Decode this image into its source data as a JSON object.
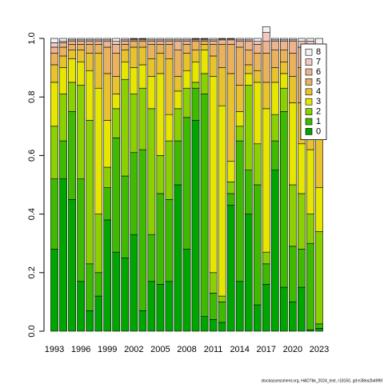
{
  "chart_data": {
    "type": "stacked_bar",
    "categories": [
      "1993",
      null,
      null,
      "1996",
      null,
      null,
      "1999",
      null,
      null,
      "2002",
      null,
      null,
      "2005",
      null,
      null,
      "2008",
      null,
      null,
      "2011",
      null,
      null,
      "2014",
      null,
      null,
      "2017",
      null,
      null,
      "2020",
      null,
      null,
      "2023"
    ],
    "series": [
      {
        "name": "0",
        "color": "#00A600",
        "values": [
          0.28,
          0.52,
          0.45,
          0.17,
          0.07,
          0.12,
          0.38,
          0.27,
          0.25,
          0.33,
          0.07,
          0.17,
          0.16,
          0.17,
          0.5,
          0.28,
          0.72,
          0.05,
          0.04,
          0.03,
          0.43,
          0.17,
          0.4,
          0.09,
          0.16,
          0.55,
          0.15,
          0.1,
          0.15,
          0.005,
          0.01
        ]
      },
      {
        "name": "1",
        "color": "#3EBB00",
        "values": [
          0.24,
          0.13,
          0.3,
          0.35,
          0.16,
          0.08,
          0.11,
          0.39,
          0.28,
          0.28,
          0.55,
          0.16,
          0.31,
          0.28,
          0.15,
          0.45,
          0.11,
          0.76,
          0.09,
          0.07,
          0.04,
          0.48,
          0.15,
          0.41,
          0.07,
          0.1,
          0.6,
          0.19,
          0.13,
          0.295,
          0.015
        ]
      },
      {
        "name": "2",
        "color": "#8BD000",
        "values": [
          0.18,
          0.16,
          0.1,
          0.32,
          0.49,
          0.2,
          0.07,
          0.1,
          0.33,
          0.2,
          0.21,
          0.43,
          0.13,
          0.2,
          0.11,
          0.1,
          0.02,
          0.07,
          0.07,
          0.02,
          0.04,
          0.05,
          0.29,
          0.14,
          0.04,
          0.09,
          0.08,
          0.21,
          0.19,
          0.1,
          0.315
        ]
      },
      {
        "name": "3",
        "color": "#E6E600",
        "values": [
          0.15,
          0.09,
          0.08,
          0.08,
          0.17,
          0.43,
          0.16,
          0.05,
          0.06,
          0.09,
          0.08,
          0.11,
          0.28,
          0.09,
          0.06,
          0.06,
          0.07,
          0.08,
          0.67,
          0.65,
          0.07,
          0.05,
          0.04,
          0.21,
          0.49,
          0.11,
          0.05,
          0.28,
          0.17,
          0.22,
          0.15
        ]
      },
      {
        "name": "4",
        "color": "#E8C32E",
        "values": [
          0.06,
          0.04,
          0.03,
          0.04,
          0.06,
          0.12,
          0.16,
          0.06,
          0.04,
          0.07,
          0.06,
          0.06,
          0.07,
          0.19,
          0.05,
          0.06,
          0.04,
          0.02,
          0.07,
          0.13,
          0.3,
          0.09,
          0.03,
          0.04,
          0.09,
          0.05,
          0.04,
          0.09,
          0.14,
          0.16,
          0.18
        ]
      },
      {
        "name": "5",
        "color": "#EBB25E",
        "values": [
          0.04,
          0.03,
          0.02,
          0.02,
          0.03,
          0.03,
          0.09,
          0.08,
          0.02,
          0.02,
          0.02,
          0.05,
          0.03,
          0.05,
          0.09,
          0.03,
          0.03,
          0.01,
          0.04,
          0.08,
          0.1,
          0.13,
          0.05,
          0.06,
          0.1,
          0.06,
          0.04,
          0.08,
          0.12,
          0.12,
          0.18
        ]
      },
      {
        "name": "6",
        "color": "#EDB48E",
        "values": [
          0.02,
          0.015,
          0.01,
          0.01,
          0.01,
          0.01,
          0.02,
          0.03,
          0.01,
          0.005,
          0.005,
          0.01,
          0.01,
          0.01,
          0.03,
          0.01,
          0.005,
          0.005,
          0.01,
          0.015,
          0.015,
          0.02,
          0.03,
          0.03,
          0.04,
          0.03,
          0.03,
          0.04,
          0.07,
          0.07,
          0.1
        ]
      },
      {
        "name": "7",
        "color": "#F0C9C0",
        "values": [
          0.015,
          0.005,
          0.005,
          0.005,
          0.005,
          0.005,
          0.005,
          0.01,
          0.005,
          0.003,
          0.003,
          0.005,
          0.005,
          0.005,
          0.005,
          0.005,
          0.003,
          0.003,
          0.005,
          0.003,
          0.003,
          0.005,
          0.005,
          0.01,
          0.03,
          0.005,
          0.005,
          0.005,
          0.02,
          0.02,
          0.03
        ]
      },
      {
        "name": "8",
        "color": "#F2F2F2",
        "values": [
          0.015,
          0.01,
          0.005,
          0.005,
          0.005,
          0.005,
          0.005,
          0.01,
          0.005,
          0.002,
          0.002,
          0.005,
          0.005,
          0.005,
          0.005,
          0.005,
          0.002,
          0.002,
          0.005,
          0.002,
          0.002,
          0.005,
          0.005,
          0.01,
          0.02,
          0.005,
          0.005,
          0.005,
          0.01,
          0.01,
          0.02
        ]
      }
    ],
    "ylim": [
      0,
      1
    ],
    "yticks": [
      {
        "value": 0,
        "label": "0.0"
      },
      0.2,
      0.4,
      0.6,
      0.8,
      {
        "value": 1,
        "label": "1.0"
      }
    ],
    "legend": "topright",
    "footer": "stockassessment.org, HAD7bk_2024_test, r18150, git:e38ea2b49f6f"
  }
}
